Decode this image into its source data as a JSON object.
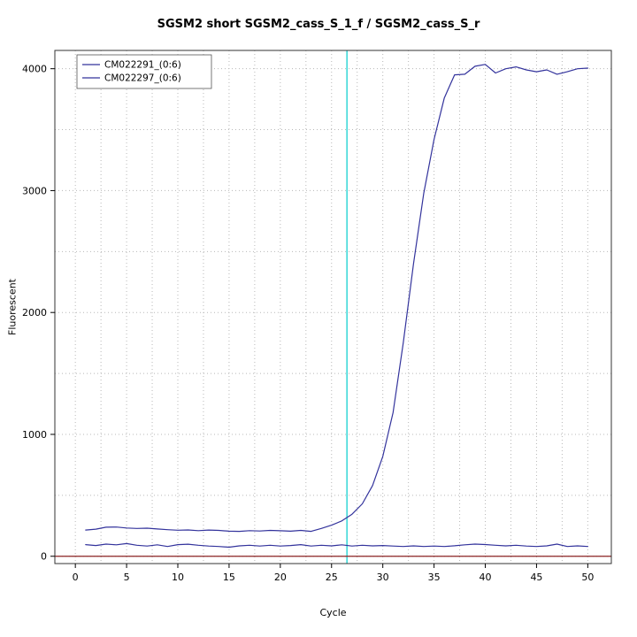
{
  "page": {
    "background": "#ffffff"
  },
  "chart_data": {
    "type": "line",
    "title": "SGSM2 short SGSM2_cass_S_1_f / SGSM2_cass_S_r",
    "xlabel": "Cycle",
    "ylabel": "Fluorescent",
    "xlim": [
      0,
      50
    ],
    "ylim": [
      0,
      4000
    ],
    "xticks": [
      0,
      5,
      10,
      15,
      20,
      25,
      30,
      35,
      40,
      45,
      50
    ],
    "yticks": [
      0,
      1000,
      2000,
      3000,
      4000
    ],
    "grid": {
      "x_step": 2.5,
      "y_step": 500,
      "color": "#b8b8b8",
      "style": "dotted"
    },
    "x": [
      1,
      2,
      3,
      4,
      5,
      6,
      7,
      8,
      9,
      10,
      11,
      12,
      13,
      14,
      15,
      16,
      17,
      18,
      19,
      20,
      21,
      22,
      23,
      24,
      25,
      26,
      27,
      28,
      29,
      30,
      31,
      32,
      33,
      34,
      35,
      36,
      37,
      38,
      39,
      40,
      41,
      42,
      43,
      44,
      45,
      46,
      47,
      48,
      49,
      50
    ],
    "series": [
      {
        "name": "CM022291_(0:6)",
        "color": "#33339c",
        "values": [
          215,
          222,
          238,
          240,
          232,
          228,
          230,
          224,
          218,
          214,
          216,
          210,
          215,
          212,
          206,
          204,
          210,
          207,
          212,
          209,
          206,
          212,
          204,
          228,
          255,
          290,
          345,
          430,
          580,
          820,
          1180,
          1750,
          2400,
          2980,
          3420,
          3760,
          3950,
          3955,
          4020,
          4035,
          3965,
          4000,
          4015,
          3990,
          3975,
          3990,
          3955,
          3975,
          4000,
          4005
        ]
      },
      {
        "name": "CM022297_(0:6)",
        "color": "#33339c",
        "values": [
          95,
          88,
          100,
          94,
          104,
          90,
          84,
          94,
          80,
          95,
          99,
          90,
          84,
          80,
          74,
          85,
          90,
          84,
          90,
          84,
          88,
          95,
          84,
          90,
          85,
          94,
          84,
          90,
          85,
          88,
          84,
          80,
          85,
          80,
          84,
          80,
          86,
          94,
          100,
          96,
          90,
          85,
          90,
          84,
          80,
          85,
          100,
          80,
          85,
          80
        ]
      }
    ],
    "threshold_line": {
      "x": 26.5,
      "color": "#00cccc"
    },
    "zero_line": {
      "y": 0,
      "color": "#8b2323"
    },
    "legend": {
      "position": "top-left",
      "entries": [
        "CM022291_(0:6)",
        "CM022297_(0:6)"
      ]
    },
    "axis_color": "#000000",
    "box_color": "#333333"
  }
}
